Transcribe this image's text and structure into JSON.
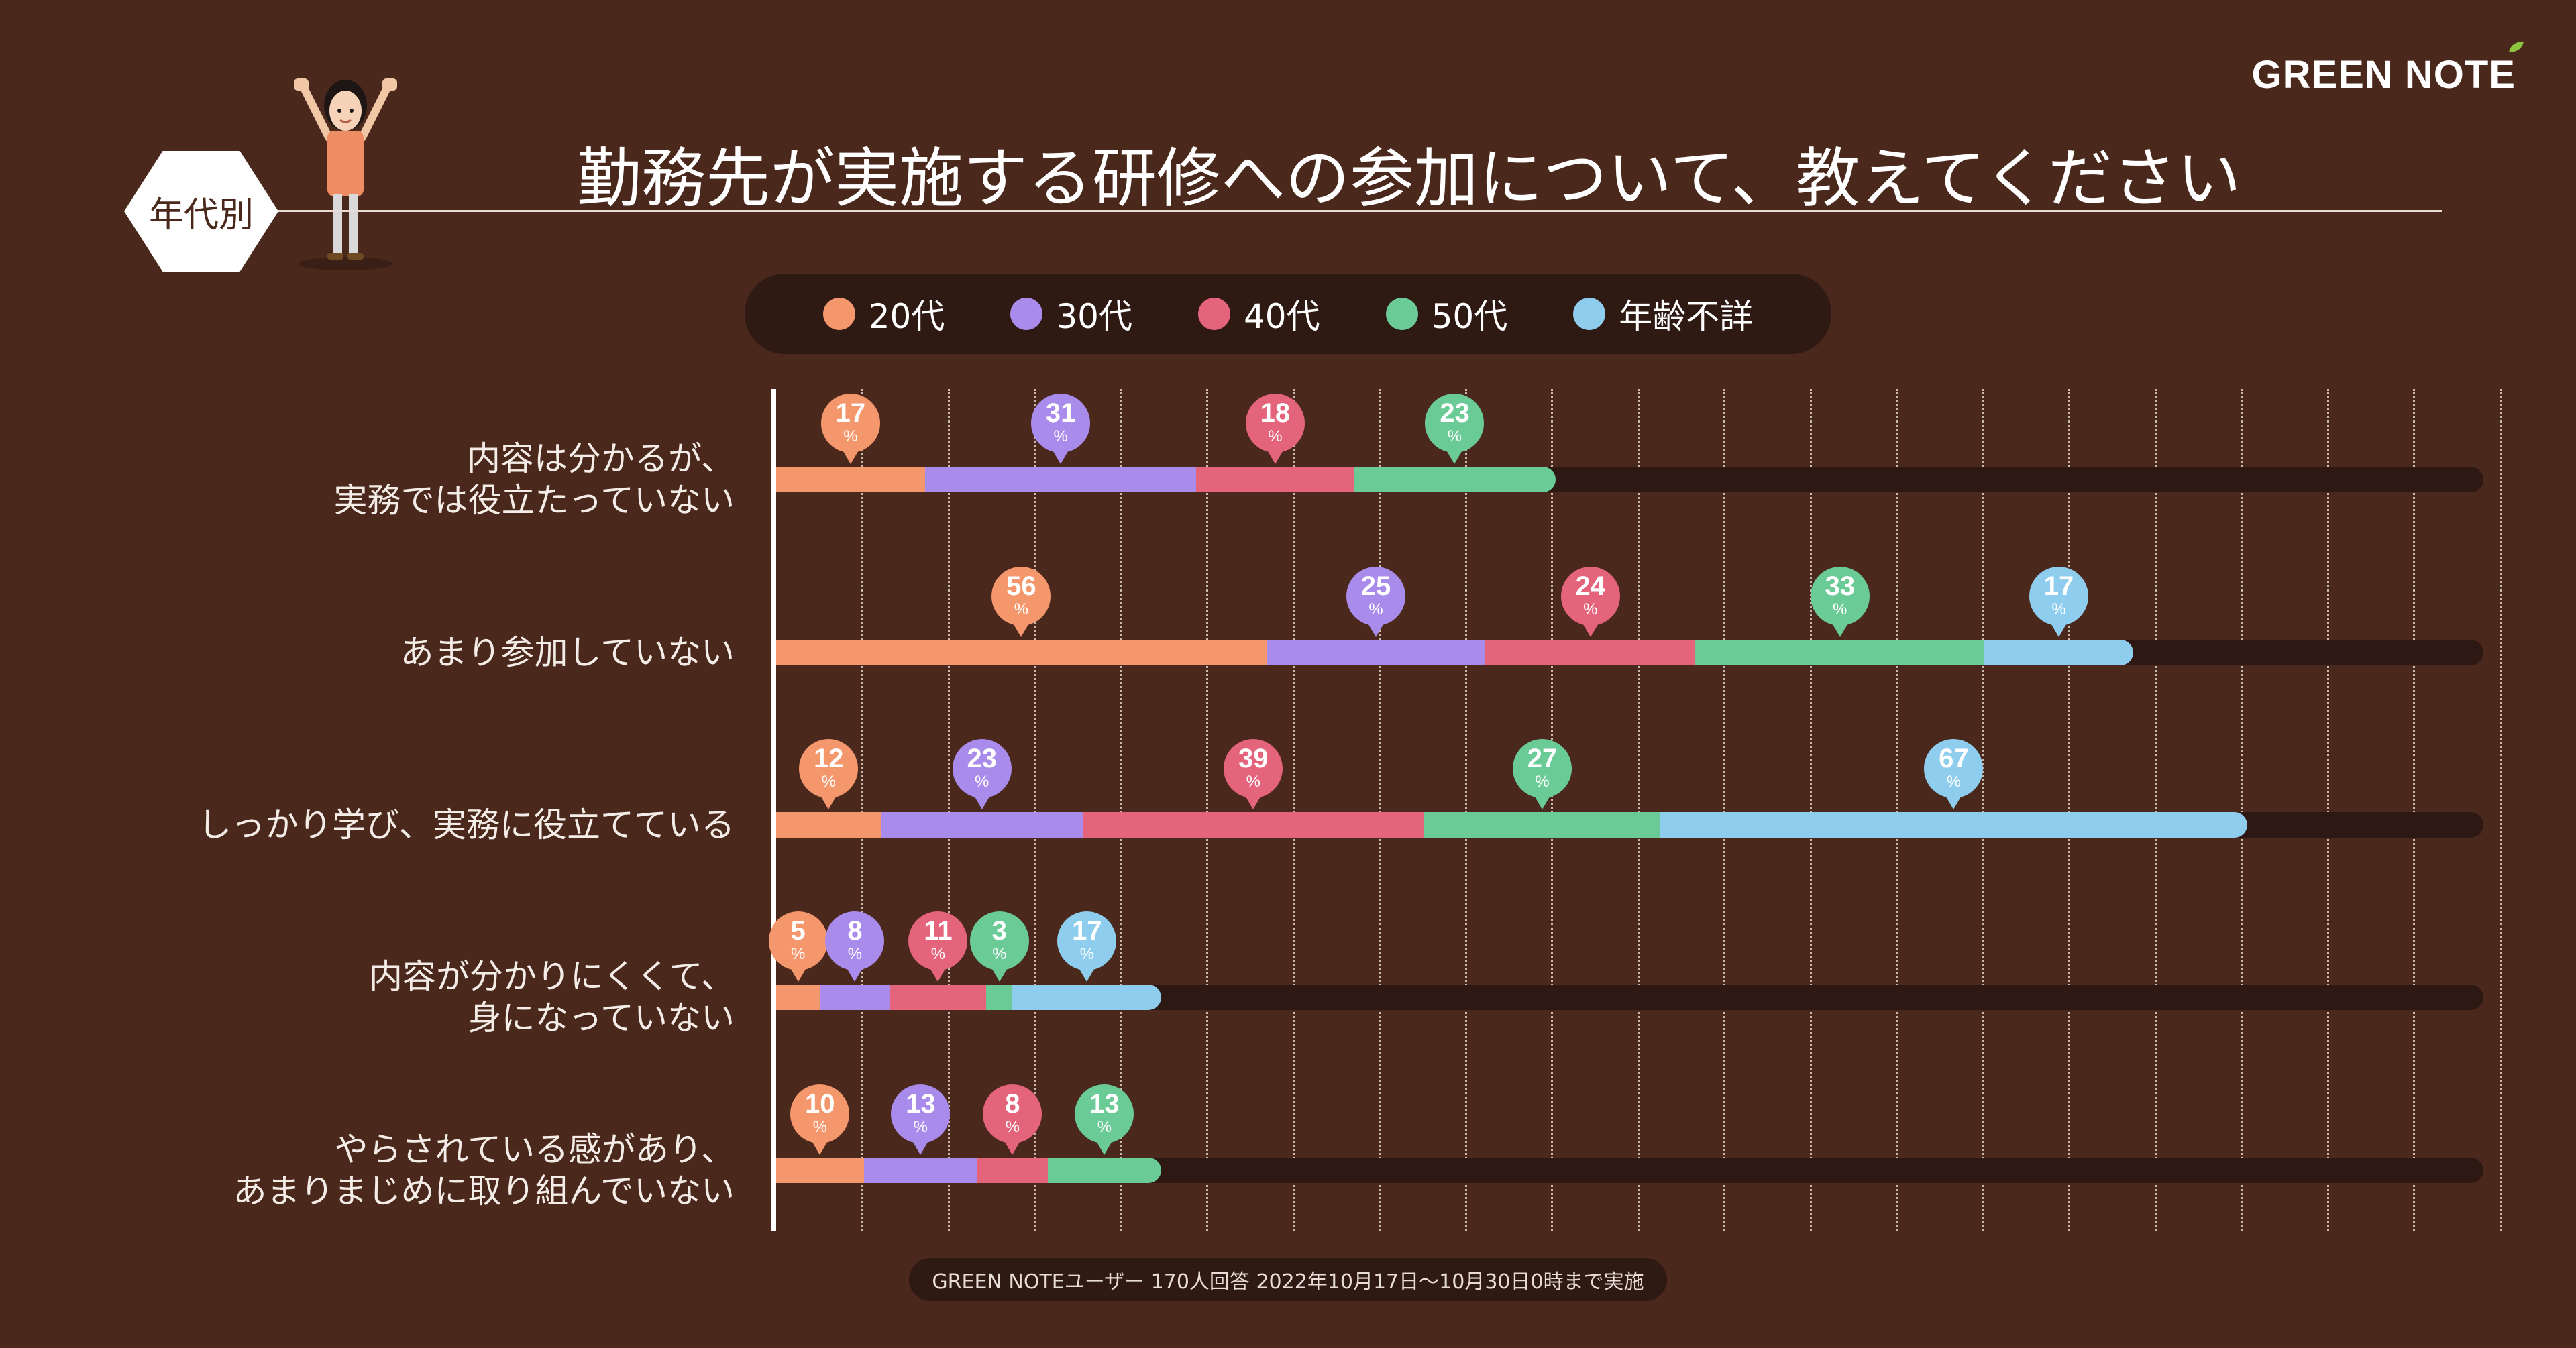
{
  "brand": "GREEN NOTE",
  "badge": "年代別",
  "title": "勤務先が実施する研修への参加について、教えてください",
  "footnote": "GREEN NOTEユーザー 170人回答 2022年10月17日〜10月30日0時まで実施",
  "percent_sign": "%",
  "chart_data": {
    "type": "bar",
    "orientation": "horizontal",
    "stacked": true,
    "title": "勤務先が実施する研修への参加について、教えてください",
    "categories": [
      [
        "内容は分かるが、",
        "実務では役立たっていない"
      ],
      [
        "あまり参加していない"
      ],
      [
        "しっかり学び、実務に役立てている"
      ],
      [
        "内容が分かりにくくて、",
        "身になっていない"
      ],
      [
        "やらされている感があり、",
        "あまりまじめに取り組んでいない"
      ]
    ],
    "series": [
      {
        "name": "20代",
        "color": "#f4976c",
        "values": [
          17,
          56,
          12,
          5,
          10
        ]
      },
      {
        "name": "30代",
        "color": "#a98beb",
        "values": [
          31,
          25,
          23,
          8,
          13
        ]
      },
      {
        "name": "40代",
        "color": "#e4647c",
        "values": [
          18,
          24,
          39,
          11,
          8
        ]
      },
      {
        "name": "50代",
        "color": "#6bcb97",
        "values": [
          23,
          33,
          27,
          3,
          13
        ]
      },
      {
        "name": "年齢不詳",
        "color": "#8fcdee",
        "values": [
          0,
          17,
          67,
          17,
          0
        ]
      }
    ],
    "unit": "%",
    "xlim": [
      0,
      195
    ],
    "legend": "top-center",
    "grid": true
  }
}
